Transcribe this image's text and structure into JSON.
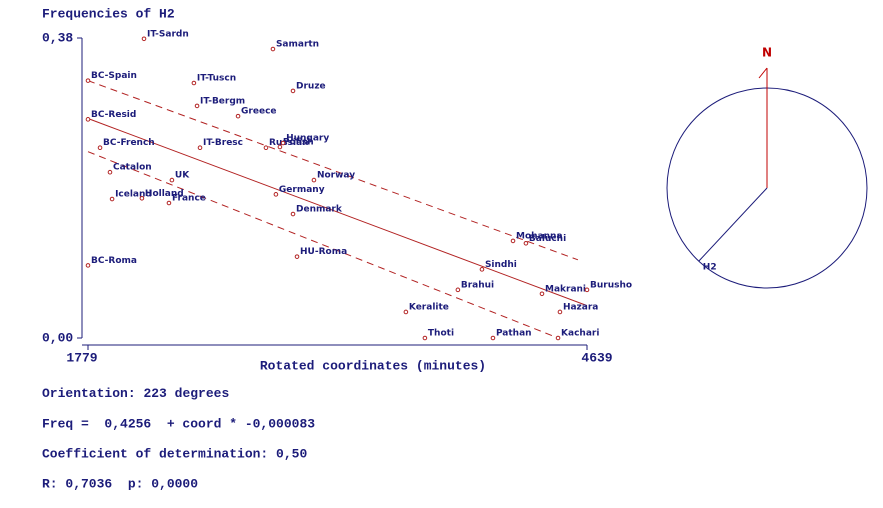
{
  "chart_data": {
    "type": "scatter",
    "title": "Frequencies of H2",
    "xlabel": "Rotated coordinates (minutes)",
    "xlim": [
      1779,
      4639
    ],
    "ylim": [
      0,
      0.38
    ],
    "xticks": [
      1779,
      4639
    ],
    "yticks": [
      {
        "value": 0.38,
        "label": "0,38"
      },
      {
        "value": 0,
        "label": "0,00"
      }
    ],
    "color": "#b22222",
    "labels": [
      "IT-Sardn",
      "Samartn",
      "BC-Spain",
      "IT-Tuscn",
      "Druze",
      "IT-Bergm",
      "Greece",
      "BC-Resid",
      "Russian",
      "Polish",
      "Hungary",
      "BC-French",
      "IT-Bresc",
      "Catalon",
      "UK",
      "Norway",
      "Germany",
      "Iceland",
      "Holland",
      "France",
      "Denmark",
      "Mohanna",
      "Baluchi",
      "HU-Roma",
      "BC-Roma",
      "Sindhi",
      "Brahui",
      "Makrani",
      "Burusho",
      "Hazara",
      "Keralite",
      "Thoti",
      "Pathan",
      "Kachari"
    ],
    "x": [
      2100,
      2839,
      1779,
      2386,
      2954,
      2404,
      2639,
      1779,
      2799,
      2879,
      2897,
      1848,
      2421,
      1905,
      2260,
      3074,
      2856,
      1917,
      2088,
      2243,
      2954,
      4215,
      4289,
      2977,
      1779,
      4037,
      3899,
      4381,
      4639,
      4484,
      3601,
      3710,
      4100,
      4473
    ],
    "y": [
      0.379,
      0.366,
      0.326,
      0.323,
      0.313,
      0.294,
      0.281,
      0.277,
      0.241,
      0.242,
      0.247,
      0.241,
      0.241,
      0.21,
      0.2,
      0.2,
      0.182,
      0.176,
      0.177,
      0.171,
      0.157,
      0.123,
      0.12,
      0.103,
      0.092,
      0.087,
      0.061,
      0.056,
      0.061,
      0.033,
      0.033,
      0,
      0,
      0
    ],
    "fit": {
      "x": [
        1779,
        4639
      ],
      "y": [
        0.278,
        0.041
      ]
    },
    "band_upper": {
      "x": [
        1779,
        4587
      ],
      "y": [
        0.326,
        0.099
      ]
    },
    "band_lower": {
      "x": [
        1779,
        4473
      ],
      "y": [
        0.236,
        0
      ]
    },
    "compass": {
      "north": "N",
      "label": "H2",
      "orientation": {
        "label": "Orientation:",
        "value": 223,
        "unit": "degrees"
      }
    },
    "stats": [
      "Freq =  0,4256  + coord * -0,000083",
      "Coefficient of determination: 0,50",
      "R: 0,7036  p: 0,0000"
    ]
  }
}
